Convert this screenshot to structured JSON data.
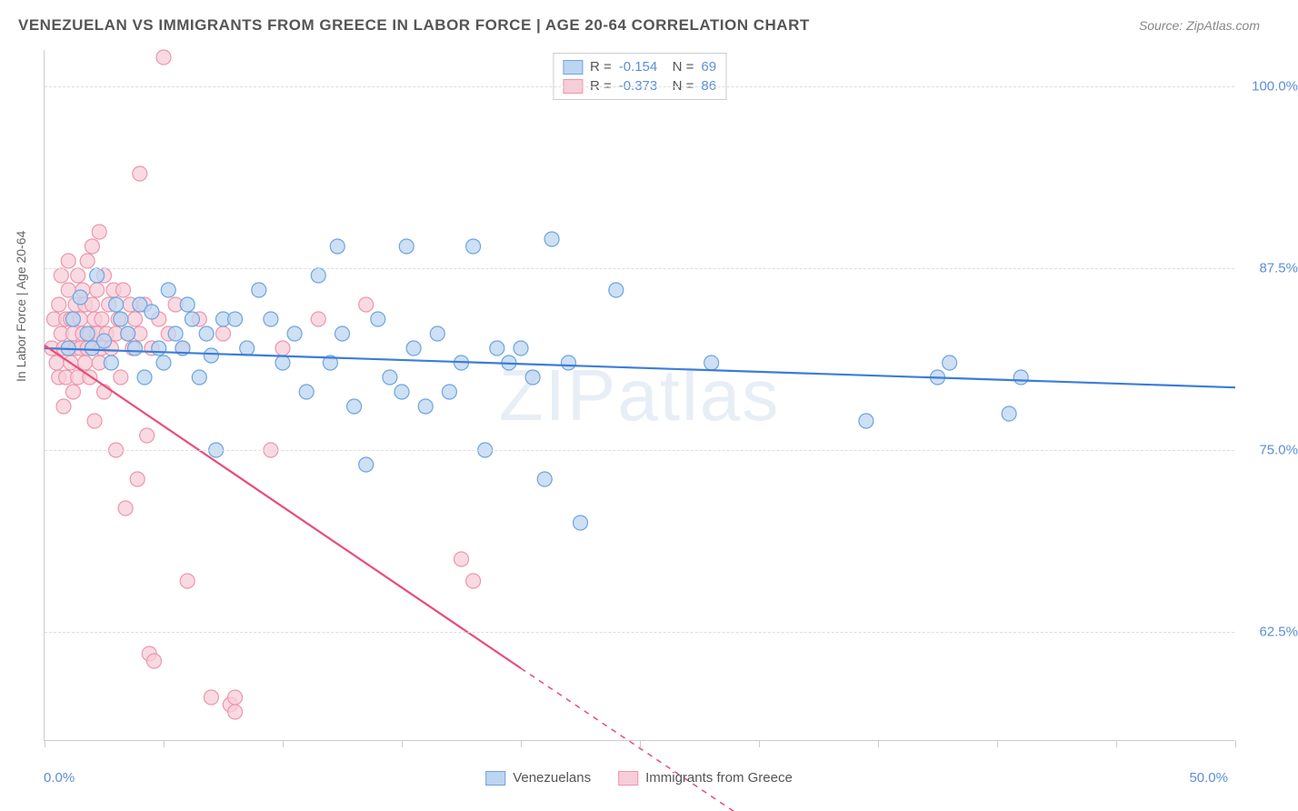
{
  "title": "VENEZUELAN VS IMMIGRANTS FROM GREECE IN LABOR FORCE | AGE 20-64 CORRELATION CHART",
  "source": "Source: ZipAtlas.com",
  "watermark": "ZIPatlas",
  "y_axis_label": "In Labor Force | Age 20-64",
  "chart": {
    "type": "scatter",
    "background_color": "#ffffff",
    "grid_color": "#dddddd",
    "axis_color": "#cccccc",
    "text_color": "#666666",
    "value_color": "#5b8fd6",
    "xlim": [
      0.0,
      50.0
    ],
    "ylim": [
      55.0,
      102.5
    ],
    "yticks": [
      {
        "v": 62.5,
        "label": "62.5%"
      },
      {
        "v": 75.0,
        "label": "75.0%"
      },
      {
        "v": 87.5,
        "label": "87.5%"
      },
      {
        "v": 100.0,
        "label": "100.0%"
      }
    ],
    "xticks_minor": [
      0,
      5,
      10,
      15,
      20,
      25,
      30,
      35,
      40,
      45,
      50
    ],
    "xtick_labels": {
      "min": "0.0%",
      "max": "50.0%"
    },
    "marker_radius": 8,
    "marker_stroke_width": 1.2,
    "line_width": 2.2,
    "series": [
      {
        "name": "Venezuelans",
        "fill": "#bcd5f0",
        "stroke": "#6ea4e0",
        "line_color": "#3b7dd8",
        "R": "-0.154",
        "N": "69",
        "trend": {
          "x1": 0.0,
          "y1": 82.0,
          "x2": 50.0,
          "y2": 79.3,
          "dash": false
        },
        "points": [
          [
            1.0,
            82.0
          ],
          [
            1.2,
            84.0
          ],
          [
            1.5,
            85.5
          ],
          [
            1.8,
            83.0
          ],
          [
            2.0,
            82.0
          ],
          [
            2.2,
            87.0
          ],
          [
            2.5,
            82.5
          ],
          [
            2.8,
            81.0
          ],
          [
            3.0,
            85.0
          ],
          [
            3.2,
            84.0
          ],
          [
            3.5,
            83.0
          ],
          [
            3.8,
            82.0
          ],
          [
            4.0,
            85.0
          ],
          [
            4.2,
            80.0
          ],
          [
            4.5,
            84.5
          ],
          [
            4.8,
            82.0
          ],
          [
            5.0,
            81.0
          ],
          [
            5.2,
            86.0
          ],
          [
            5.5,
            83.0
          ],
          [
            5.8,
            82.0
          ],
          [
            6.0,
            85.0
          ],
          [
            6.2,
            84.0
          ],
          [
            6.5,
            80.0
          ],
          [
            6.8,
            83.0
          ],
          [
            7.0,
            81.5
          ],
          [
            7.2,
            75.0
          ],
          [
            7.5,
            84.0
          ],
          [
            8.0,
            84.0
          ],
          [
            8.5,
            82.0
          ],
          [
            9.0,
            86.0
          ],
          [
            9.5,
            84.0
          ],
          [
            10.0,
            81.0
          ],
          [
            10.5,
            83.0
          ],
          [
            11.0,
            79.0
          ],
          [
            11.5,
            87.0
          ],
          [
            12.0,
            81.0
          ],
          [
            12.3,
            89.0
          ],
          [
            12.5,
            83.0
          ],
          [
            13.0,
            78.0
          ],
          [
            13.5,
            74.0
          ],
          [
            14.0,
            84.0
          ],
          [
            14.5,
            80.0
          ],
          [
            15.0,
            79.0
          ],
          [
            15.2,
            89.0
          ],
          [
            15.5,
            82.0
          ],
          [
            16.0,
            78.0
          ],
          [
            16.5,
            83.0
          ],
          [
            17.0,
            79.0
          ],
          [
            17.5,
            81.0
          ],
          [
            18.0,
            89.0
          ],
          [
            18.5,
            75.0
          ],
          [
            19.0,
            82.0
          ],
          [
            19.5,
            81.0
          ],
          [
            20.0,
            82.0
          ],
          [
            20.5,
            80.0
          ],
          [
            21.0,
            73.0
          ],
          [
            21.3,
            89.5
          ],
          [
            22.0,
            81.0
          ],
          [
            22.5,
            70.0
          ],
          [
            24.0,
            86.0
          ],
          [
            28.0,
            81.0
          ],
          [
            34.5,
            77.0
          ],
          [
            37.5,
            80.0
          ],
          [
            38.0,
            81.0
          ],
          [
            40.5,
            77.5
          ],
          [
            41.0,
            80.0
          ]
        ]
      },
      {
        "name": "Immigrants from Greece",
        "fill": "#f7cdd8",
        "stroke": "#ed96ac",
        "line_color": "#e84c7a",
        "R": "-0.373",
        "N": "86",
        "trend": {
          "x1": 0.0,
          "y1": 82.2,
          "x2": 20.0,
          "y2": 60.0,
          "dash": false
        },
        "trend_ext": {
          "x1": 20.0,
          "y1": 60.0,
          "x2": 30.0,
          "y2": 49.0,
          "dash": true
        },
        "points": [
          [
            0.3,
            82.0
          ],
          [
            0.4,
            84.0
          ],
          [
            0.5,
            81.0
          ],
          [
            0.6,
            85.0
          ],
          [
            0.6,
            80.0
          ],
          [
            0.7,
            83.0
          ],
          [
            0.7,
            87.0
          ],
          [
            0.8,
            82.0
          ],
          [
            0.8,
            78.0
          ],
          [
            0.9,
            84.0
          ],
          [
            0.9,
            80.0
          ],
          [
            1.0,
            86.0
          ],
          [
            1.0,
            82.0
          ],
          [
            1.0,
            88.0
          ],
          [
            1.1,
            81.0
          ],
          [
            1.1,
            84.0
          ],
          [
            1.2,
            83.0
          ],
          [
            1.2,
            79.0
          ],
          [
            1.3,
            85.0
          ],
          [
            1.3,
            82.0
          ],
          [
            1.4,
            87.0
          ],
          [
            1.4,
            80.0
          ],
          [
            1.5,
            84.0
          ],
          [
            1.5,
            82.0
          ],
          [
            1.6,
            86.0
          ],
          [
            1.6,
            83.0
          ],
          [
            1.7,
            81.0
          ],
          [
            1.7,
            85.0
          ],
          [
            1.8,
            82.0
          ],
          [
            1.8,
            88.0
          ],
          [
            1.9,
            83.0
          ],
          [
            1.9,
            80.0
          ],
          [
            2.0,
            85.0
          ],
          [
            2.0,
            82.0
          ],
          [
            2.0,
            89.0
          ],
          [
            2.1,
            84.0
          ],
          [
            2.1,
            77.0
          ],
          [
            2.2,
            83.0
          ],
          [
            2.2,
            86.0
          ],
          [
            2.3,
            81.0
          ],
          [
            2.3,
            90.0
          ],
          [
            2.4,
            84.0
          ],
          [
            2.4,
            82.0
          ],
          [
            2.5,
            87.0
          ],
          [
            2.5,
            79.0
          ],
          [
            2.6,
            83.0
          ],
          [
            2.7,
            85.0
          ],
          [
            2.8,
            82.0
          ],
          [
            2.9,
            86.0
          ],
          [
            3.0,
            83.0
          ],
          [
            3.0,
            75.0
          ],
          [
            3.1,
            84.0
          ],
          [
            3.2,
            80.0
          ],
          [
            3.3,
            86.0
          ],
          [
            3.4,
            71.0
          ],
          [
            3.5,
            83.0
          ],
          [
            3.6,
            85.0
          ],
          [
            3.7,
            82.0
          ],
          [
            3.8,
            84.0
          ],
          [
            3.9,
            73.0
          ],
          [
            4.0,
            83.0
          ],
          [
            4.0,
            94.0
          ],
          [
            4.2,
            85.0
          ],
          [
            4.3,
            76.0
          ],
          [
            4.4,
            61.0
          ],
          [
            4.5,
            82.0
          ],
          [
            4.6,
            60.5
          ],
          [
            4.8,
            84.0
          ],
          [
            5.0,
            102.0
          ],
          [
            5.2,
            83.0
          ],
          [
            5.5,
            85.0
          ],
          [
            5.8,
            82.0
          ],
          [
            6.0,
            66.0
          ],
          [
            6.5,
            84.0
          ],
          [
            7.0,
            58.0
          ],
          [
            7.5,
            83.0
          ],
          [
            7.8,
            57.5
          ],
          [
            8.0,
            57.0
          ],
          [
            8.0,
            58.0
          ],
          [
            9.5,
            75.0
          ],
          [
            10.0,
            82.0
          ],
          [
            11.5,
            84.0
          ],
          [
            13.5,
            85.0
          ],
          [
            17.5,
            67.5
          ],
          [
            18.0,
            66.0
          ]
        ]
      }
    ]
  }
}
